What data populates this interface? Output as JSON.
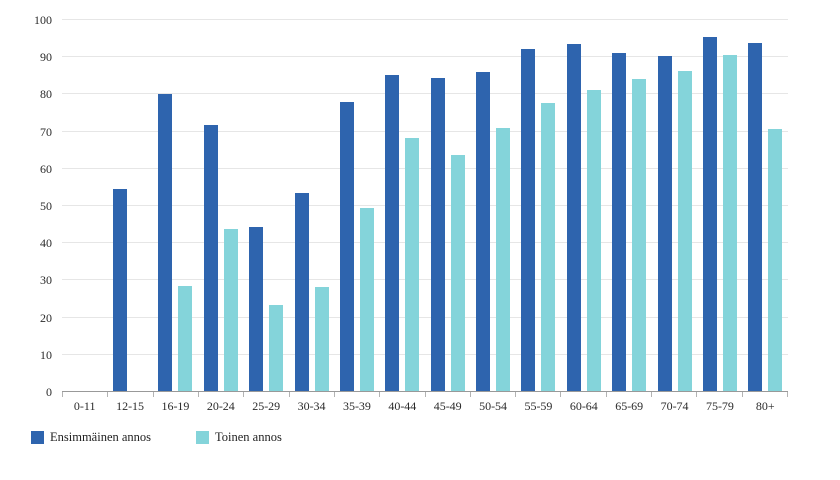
{
  "chart_data": {
    "type": "bar",
    "title": "",
    "xlabel": "",
    "ylabel": "",
    "categories": [
      "0-11",
      "12-15",
      "16-19",
      "20-24",
      "25-29",
      "30-34",
      "35-39",
      "40-44",
      "45-49",
      "50-54",
      "55-59",
      "60-64",
      "65-69",
      "70-74",
      "75-79",
      "80+"
    ],
    "series": [
      {
        "name": "Ensimmäinen annos",
        "color": "#2e64ae",
        "values": [
          0,
          54.6,
          80.2,
          71.9,
          44.3,
          53.4,
          77.9,
          85.2,
          84.4,
          86.1,
          92.2,
          93.6,
          91.1,
          90.4,
          95.5,
          93.9
        ]
      },
      {
        "name": "Toinen annos",
        "color": "#84d4da",
        "values": [
          0,
          0,
          28.6,
          43.8,
          23.5,
          28.3,
          49.4,
          68.4,
          63.8,
          71.0,
          77.8,
          81.3,
          84.1,
          86.4,
          90.6,
          70.8
        ]
      }
    ],
    "ylim": [
      0,
      100
    ],
    "y_ticks": [
      0,
      10,
      20,
      30,
      40,
      50,
      60,
      70,
      80,
      90,
      100
    ],
    "grid": true,
    "legend_position": "bottom-left"
  },
  "colors": {
    "first_dose": "#2e64ae",
    "second_dose": "#84d4da",
    "gridline": "#e6e6e6",
    "axis_line": "#999999",
    "tick": "#b3b3b3",
    "text": "#2b2b2b"
  }
}
